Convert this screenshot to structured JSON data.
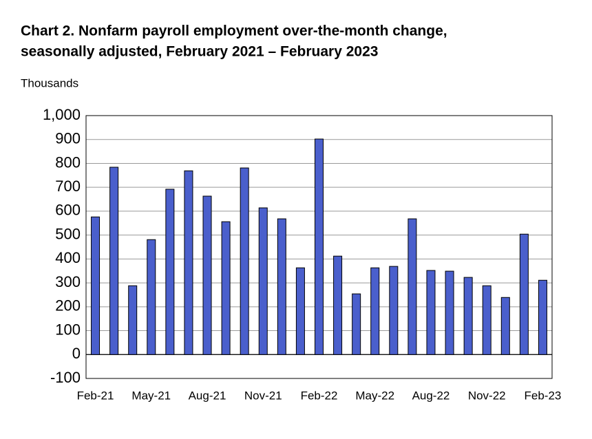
{
  "chart_data": {
    "type": "bar",
    "title": [
      "Chart 2. Nonfarm payroll employment over-the-month change,",
      "seasonally adjusted, February 2021 – February 2023"
    ],
    "y_label": "Thousands",
    "categories": [
      "Feb-21",
      null,
      null,
      "May-21",
      null,
      null,
      "Aug-21",
      null,
      null,
      "Nov-21",
      null,
      null,
      "Feb-22",
      null,
      null,
      "May-22",
      null,
      null,
      "Aug-22",
      null,
      null,
      "Nov-22",
      null,
      null,
      "Feb-23"
    ],
    "values": [
      576,
      784,
      288,
      481,
      692,
      769,
      663,
      556,
      781,
      614,
      568,
      363,
      902,
      412,
      254,
      363,
      369,
      568,
      352,
      349,
      323,
      288,
      239,
      504,
      311
    ],
    "color": "#4a5fcc",
    "ylim": [
      -100,
      1000
    ],
    "yticks": [
      -100,
      0,
      100,
      200,
      300,
      400,
      500,
      600,
      700,
      800,
      900,
      {
        "value": 1000,
        "label": "1,000"
      }
    ],
    "grid": true
  }
}
